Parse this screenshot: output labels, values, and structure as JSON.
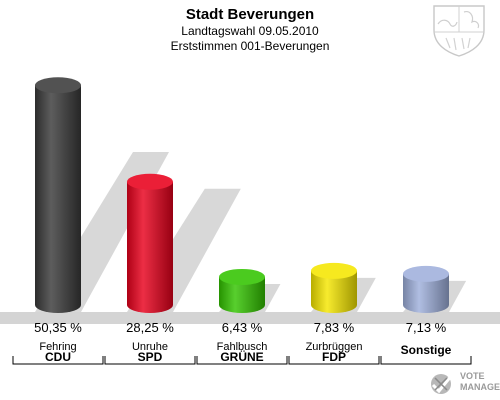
{
  "header": {
    "title": "Stadt Beverungen",
    "subtitle_1": "Landtagswahl 09.05.2010",
    "subtitle_2": "Erststimmen 001-Beverungen"
  },
  "chart_data": {
    "type": "bar",
    "title": "Stadt Beverungen",
    "subtitle": "Landtagswahl 09.05.2010 — Erststimmen 001-Beverungen",
    "categories": [
      "CDU",
      "SPD",
      "GRÜNE",
      "FDP",
      "Sonstige"
    ],
    "candidates": [
      "Fehring",
      "Unruhe",
      "Fahlbusch",
      "Zurbrüggen",
      ""
    ],
    "values": [
      50.35,
      28.25,
      6.43,
      7.83,
      7.13
    ],
    "value_labels": [
      "50,35 %",
      "28,25 %",
      "6,43 %",
      "7,83 %",
      "7,13 %"
    ],
    "colors": [
      "#3a3a3a",
      "#e8001c",
      "#33c400",
      "#f5e600",
      "#9fb0dc"
    ],
    "ylim": [
      0,
      55
    ],
    "grid": false
  },
  "branding": {
    "line_1": "VOTE",
    "line_2": "MANAGER",
    "crest_icon": "nrw-coat-of-arms-icon",
    "logo_icon": "vote-manager-logo-icon"
  }
}
